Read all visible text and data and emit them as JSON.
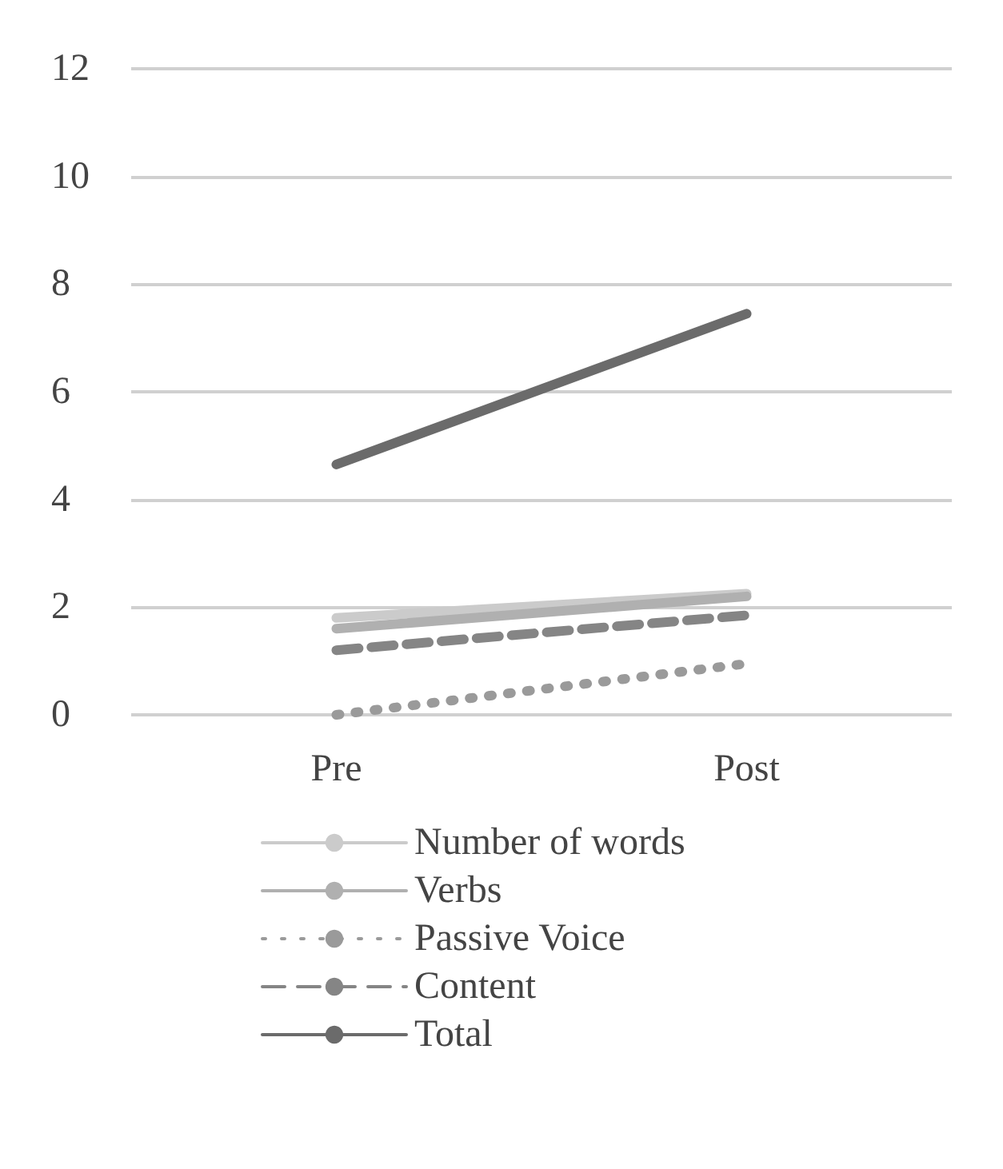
{
  "chart_data": {
    "type": "line",
    "categories": [
      "Pre",
      "Post"
    ],
    "series": [
      {
        "name": "Number of words",
        "color": "#cbcbcb",
        "values": [
          1.8,
          2.25
        ],
        "line_style": "solid"
      },
      {
        "name": "Verbs",
        "color": "#b0b0b0",
        "values": [
          1.6,
          2.2
        ],
        "line_style": "solid"
      },
      {
        "name": "Passive Voice",
        "color": "#9a9a9a",
        "values": [
          0,
          0.95
        ],
        "line_style": "dotted"
      },
      {
        "name": "Content",
        "color": "#858585",
        "values": [
          1.2,
          1.85
        ],
        "line_style": "dashed"
      },
      {
        "name": "Total",
        "color": "#6b6b6b",
        "values": [
          4.65,
          7.45
        ],
        "line_style": "solid"
      }
    ],
    "ylim": [
      0,
      12
    ],
    "yticks": [
      0,
      2,
      4,
      6,
      8,
      10,
      12
    ],
    "grid": "y",
    "legend": "bottom",
    "marker": "none"
  }
}
